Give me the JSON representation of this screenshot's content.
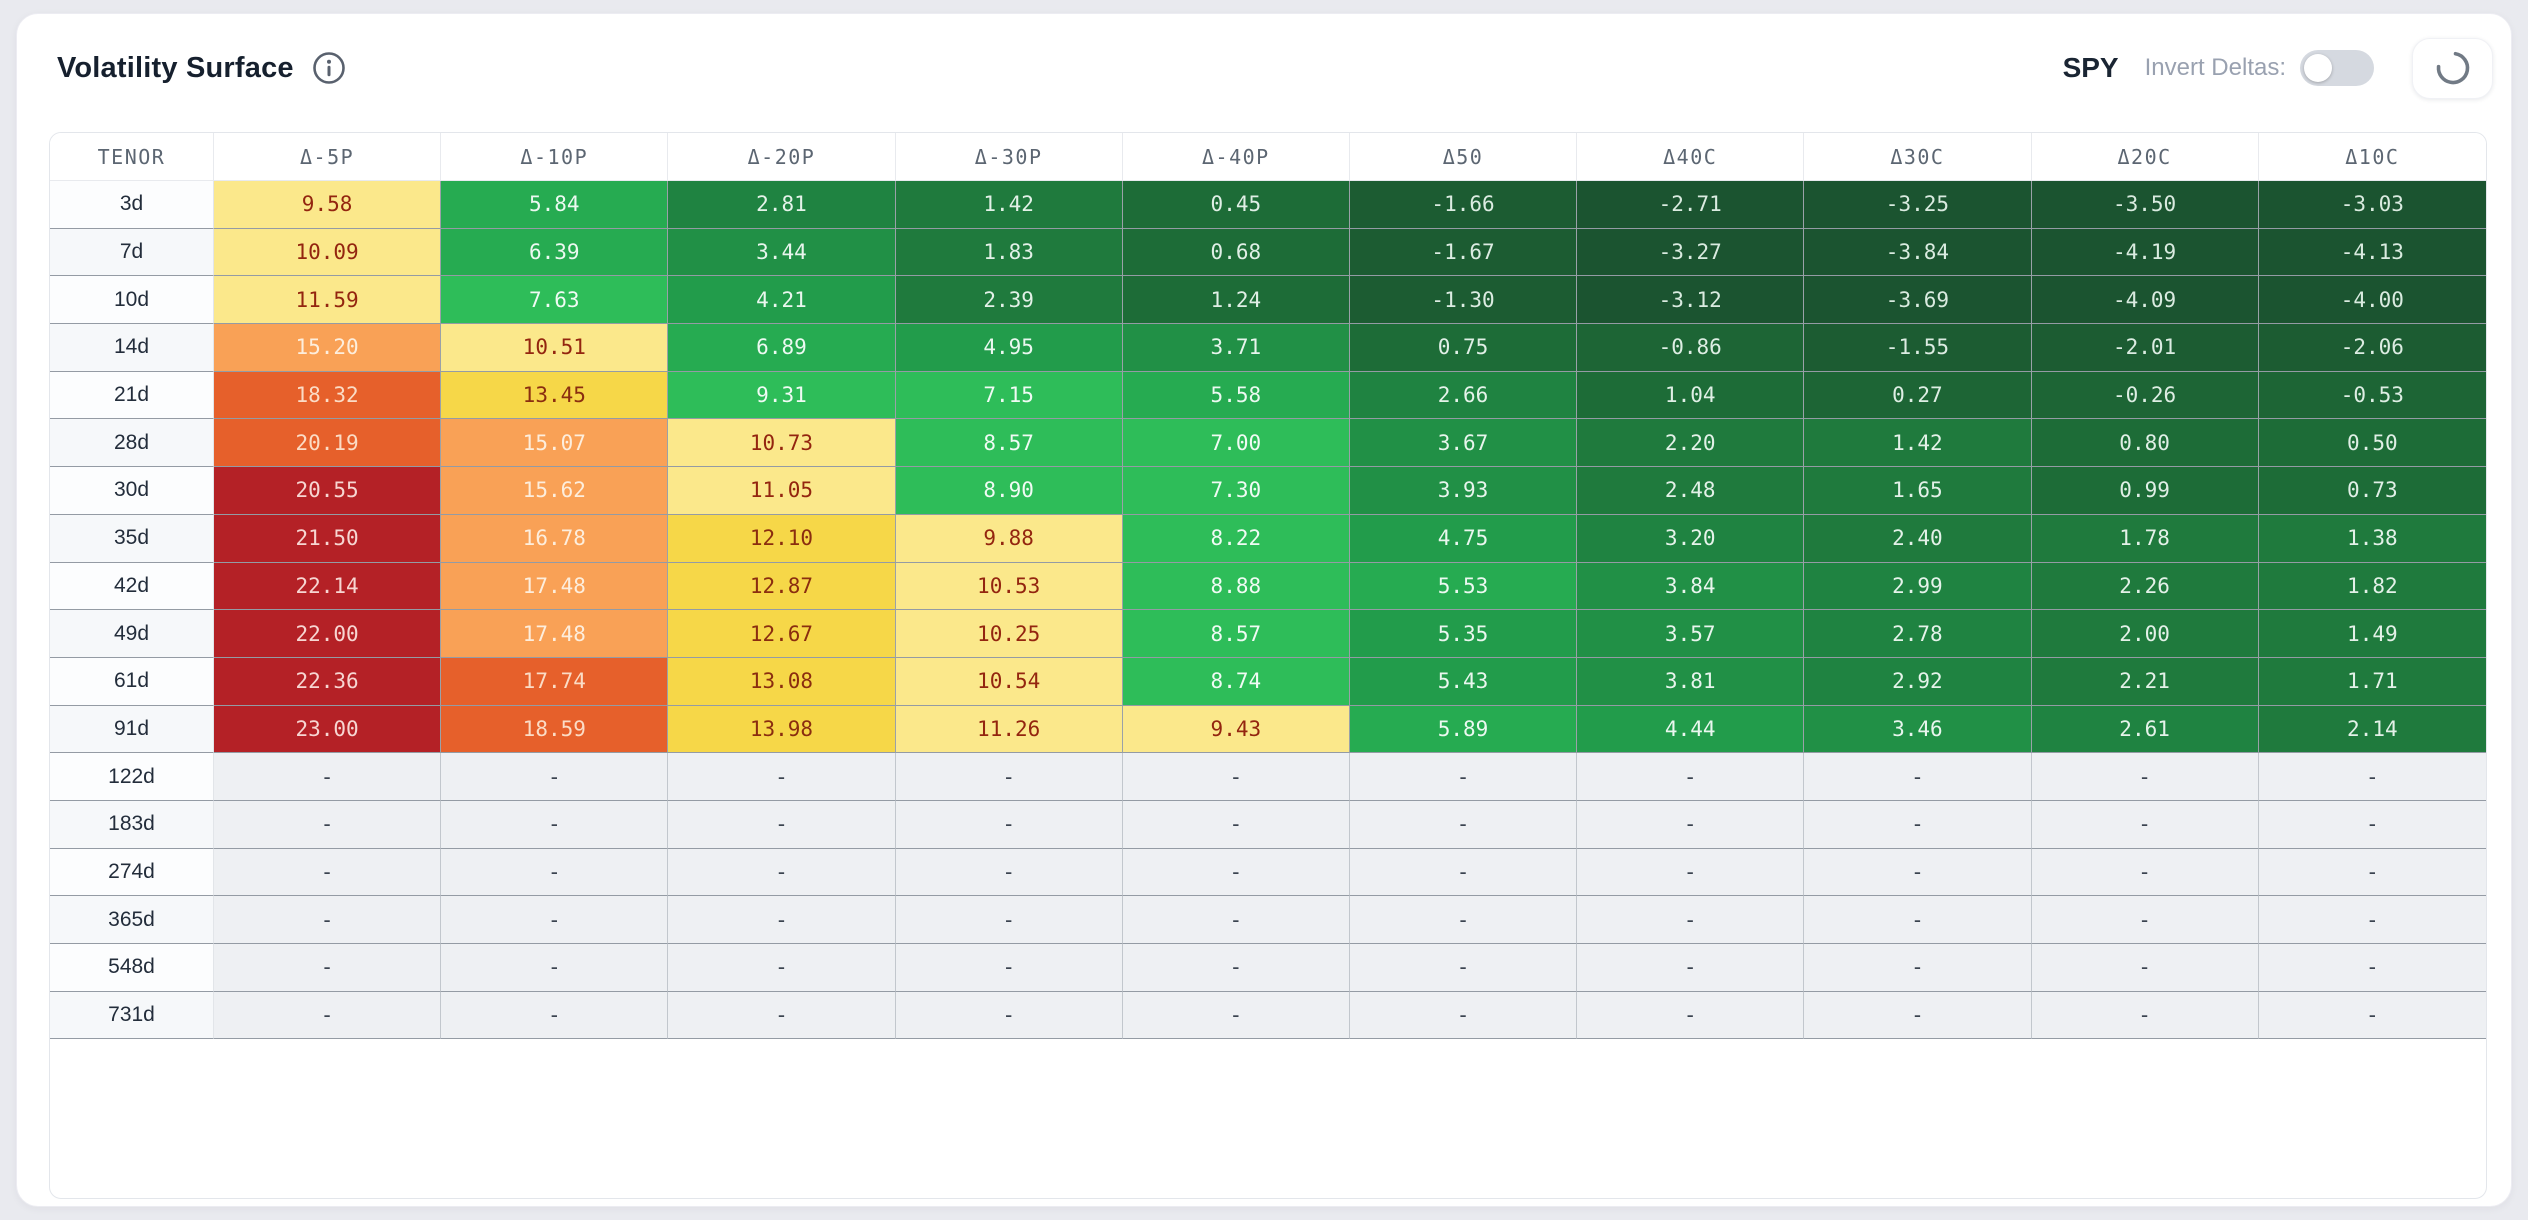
{
  "header": {
    "title": "Volatility Surface",
    "symbol": "SPY",
    "invert_label": "Invert Deltas:",
    "invert_toggle_on": false,
    "icons": {
      "info": "info-icon",
      "spinner": "loading-spinner-icon"
    },
    "icon_colors": {
      "info": "#59616e",
      "spinner": "#717a85"
    }
  },
  "table": {
    "columns": [
      "TENOR",
      "Δ-5P",
      "Δ-10P",
      "Δ-20P",
      "Δ-30P",
      "Δ-40P",
      "Δ50",
      "Δ40C",
      "Δ30C",
      "Δ20C",
      "Δ10C"
    ],
    "empty_placeholder": "-",
    "rows": [
      {
        "tenor": "3d",
        "values": [
          9.58,
          5.84,
          2.81,
          1.42,
          0.45,
          -1.66,
          -2.71,
          -3.25,
          -3.5,
          -3.03
        ]
      },
      {
        "tenor": "7d",
        "values": [
          10.09,
          6.39,
          3.44,
          1.83,
          0.68,
          -1.67,
          -3.27,
          -3.84,
          -4.19,
          -4.13
        ]
      },
      {
        "tenor": "10d",
        "values": [
          11.59,
          7.63,
          4.21,
          2.39,
          1.24,
          -1.3,
          -3.12,
          -3.69,
          -4.09,
          -4.0
        ]
      },
      {
        "tenor": "14d",
        "values": [
          15.2,
          10.51,
          6.89,
          4.95,
          3.71,
          0.75,
          -0.86,
          -1.55,
          -2.01,
          -2.06
        ]
      },
      {
        "tenor": "21d",
        "values": [
          18.32,
          13.45,
          9.31,
          7.15,
          5.58,
          2.66,
          1.04,
          0.27,
          -0.26,
          -0.53
        ]
      },
      {
        "tenor": "28d",
        "values": [
          20.19,
          15.07,
          10.73,
          8.57,
          7.0,
          3.67,
          2.2,
          1.42,
          0.8,
          0.5
        ]
      },
      {
        "tenor": "30d",
        "values": [
          20.55,
          15.62,
          11.05,
          8.9,
          7.3,
          3.93,
          2.48,
          1.65,
          0.99,
          0.73
        ]
      },
      {
        "tenor": "35d",
        "values": [
          21.5,
          16.78,
          12.1,
          9.88,
          8.22,
          4.75,
          3.2,
          2.4,
          1.78,
          1.38
        ]
      },
      {
        "tenor": "42d",
        "values": [
          22.14,
          17.48,
          12.87,
          10.53,
          8.88,
          5.53,
          3.84,
          2.99,
          2.26,
          1.82
        ]
      },
      {
        "tenor": "49d",
        "values": [
          22.0,
          17.48,
          12.67,
          10.25,
          8.57,
          5.35,
          3.57,
          2.78,
          2.0,
          1.49
        ]
      },
      {
        "tenor": "61d",
        "values": [
          22.36,
          17.74,
          13.08,
          10.54,
          8.74,
          5.43,
          3.81,
          2.92,
          2.21,
          1.71
        ]
      },
      {
        "tenor": "91d",
        "values": [
          23.0,
          18.59,
          13.98,
          11.26,
          9.43,
          5.89,
          4.44,
          3.46,
          2.61,
          2.14
        ]
      },
      {
        "tenor": "122d",
        "values": null
      },
      {
        "tenor": "183d",
        "values": null
      },
      {
        "tenor": "274d",
        "values": null
      },
      {
        "tenor": "365d",
        "values": null
      },
      {
        "tenor": "548d",
        "values": null
      },
      {
        "tenor": "731d",
        "values": null
      }
    ]
  },
  "heatmap": {
    "bands": [
      {
        "min": 20.4,
        "bg": "#b42126",
        "fg": "#f7d6d2"
      },
      {
        "min": 17.6,
        "bg": "#e6602b",
        "fg": "#fbdcc6"
      },
      {
        "min": 14.5,
        "bg": "#f9a156",
        "fg": "#fdeedd"
      },
      {
        "min": 11.85,
        "bg": "#f6d748",
        "fg": "#8a2d0f"
      },
      {
        "min": 9.38,
        "bg": "#fbe88b",
        "fg": "#93250f"
      },
      {
        "min": 7.0,
        "bg": "#2ebd59",
        "fg": "#f0fbf4"
      },
      {
        "min": 5.5,
        "bg": "#26ab51",
        "fg": "#ecf9f1"
      },
      {
        "min": 4.2,
        "bg": "#229c4b",
        "fg": "#eaf7ef"
      },
      {
        "min": 3.4,
        "bg": "#219046",
        "fg": "#e8f5ed"
      },
      {
        "min": 2.6,
        "bg": "#1f8341",
        "fg": "#e5f3ea"
      },
      {
        "min": 1.3,
        "bg": "#1f7a3d",
        "fg": "#e3f1e8"
      },
      {
        "min": 0.3,
        "bg": "#1d6c37",
        "fg": "#e0efe6"
      },
      {
        "min": -0.9,
        "bg": "#1d6535",
        "fg": "#deeee4"
      },
      {
        "min": -2.3,
        "bg": "#1c5c32",
        "fg": "#dcece2"
      },
      {
        "min": -99,
        "bg": "#1b5430",
        "fg": "#daebe0"
      }
    ]
  }
}
